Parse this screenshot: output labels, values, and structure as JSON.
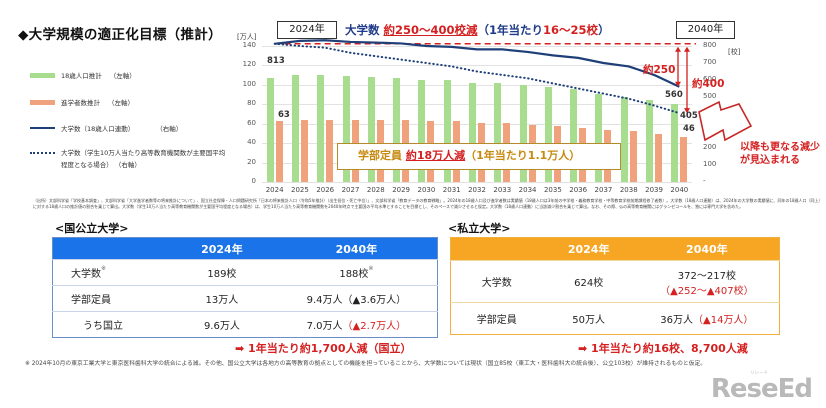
{
  "page": {
    "title": "◆大学規模の適正化目標（推計）"
  },
  "legend": {
    "items": [
      {
        "label": "18歳人口推計",
        "axis": "（左軸）"
      },
      {
        "label": "進学者数推計",
        "axis": "（左軸）"
      },
      {
        "label": "大学数（18歳人口連動）",
        "axis": "（右軸）"
      },
      {
        "label": "大学数（学生10万人当たり高等教育機関数が主要国平均程度となる場合）",
        "axis": "（右軸）"
      }
    ]
  },
  "header": {
    "year_start": "2024年",
    "year_end": "2040年",
    "headline_prefix": "大学数 ",
    "headline_red": "約250～400校減",
    "headline_paren_open": "（1年当たり",
    "headline_paren_red": "16～25校",
    "headline_paren_close": "）"
  },
  "axes": {
    "left_unit": "[万人]",
    "right_unit": "[校]",
    "left_ticks": [
      "140",
      "120",
      "100",
      "80",
      "60",
      "40",
      "20",
      "0"
    ],
    "right_ticks": [
      "800",
      "700",
      "600",
      "500",
      "400",
      "300",
      "200",
      "100",
      "-"
    ]
  },
  "annotations": {
    "label_813": "813",
    "label_63": "63",
    "label_560": "560",
    "label_405": "405",
    "label_46": "46",
    "gap_250": "約250",
    "gap_400": "約400",
    "callout_prefix": "学部定員 ",
    "callout_red": "約18万人減",
    "callout_suffix": "（1年当たり1.1万人）",
    "future_note": "以降も更なる減少が見込まれる"
  },
  "source_note": "（出所）文部科学省「学校基本調査」、文部科学省「大学進学者数等の将来推計について」、国立社会保障・人口問題研究所「日本の将来推計人口（令和5年推計）（出生低位・死亡中位）」、文部科学省「教育データの教育戦略」。2024年の18歳人口及び進学者数は実績値（18歳人口は3年前の中学校・義務教育学校・中等教育学校前期課程修了者数）。大学数（18歳人口連動）は、2024年の大学数の実績値に、同年の18歳人口（同上）に対する18歳人口の推計値の割合を乗じて算出。大学数（学生10万人当たり高等教育機関数が主要国平均程度となる場合）は、学生10万人当たり高等教育機関数を2040年時点で主要国の平均水準とすることを目標とし、そのペースで減少させると仮定。大学数（18歳人口連動）に当該減少割合を乗じて算出。なお、その際、仏の高等教育機関にはグランゼコールを、独には専門大学を含めた。",
  "public": {
    "section_title": "<国公立大学>",
    "headers": [
      "",
      "2024年",
      "2040年"
    ],
    "rows": [
      {
        "label": "大学数",
        "label_mark": "※",
        "v2024": "189校",
        "v2040": "188校",
        "v2040_mark": "※",
        "v2040_red": ""
      },
      {
        "label": "学部定員",
        "label_mark": "",
        "v2024": "13万人",
        "v2040": "9.4万人（▲3.6万人）",
        "v2040_mark": "",
        "v2040_red": ""
      },
      {
        "label": "うち国立",
        "label_mark": "",
        "v2024": "9.6万人",
        "v2040": "7.0万人",
        "v2040_mark": "",
        "v2040_red": "（▲2.7万人）"
      }
    ],
    "summary": "➡ 1年当たり約1,700人減（国立）"
  },
  "private": {
    "section_title": "<私立大学>",
    "headers": [
      "",
      "2024年",
      "2040年"
    ],
    "rows": [
      {
        "label": "大学数",
        "v2024": "624校",
        "v2040": "372～217校",
        "v2040_red": "（▲252～▲407校）"
      },
      {
        "label": "学部定員",
        "v2024": "50万人",
        "v2040": "36万人",
        "v2040_red": "（▲14万人）"
      }
    ],
    "summary": "➡ 1年当たり約16校、8,700人減"
  },
  "footnote": "※ 2024年10月の東京工業大学と東京医科歯科大学の統合による減。その他、国公立大学は各地方の高等教育の拠点としての機能を担っていることから、大学数については現状（国立85校（東工大・医科歯科大の統合後）、公立103校）が維持されるものと仮定。",
  "logo": {
    "text": "ReseEd",
    "sub": "リシード"
  },
  "chart_data": {
    "type": "bar",
    "title": "大学規模の適正化目標（推計）",
    "xlabel": "",
    "ylabel": "万人",
    "y2label": "校",
    "ylim": [
      0,
      140
    ],
    "y2lim": [
      0,
      800
    ],
    "categories": [
      "2024",
      "2025",
      "2026",
      "2027",
      "2028",
      "2029",
      "2030",
      "2031",
      "2032",
      "2033",
      "2034",
      "2035",
      "2036",
      "2037",
      "2038",
      "2039",
      "2040"
    ],
    "series": [
      {
        "name": "18歳人口推計（左軸）",
        "type": "bar",
        "axis": "left",
        "color": "#a8dc8f",
        "values": [
          107,
          110,
          110,
          109,
          108,
          107,
          105,
          105,
          102,
          102,
          100,
          98,
          96,
          91,
          88,
          84,
          80
        ]
      },
      {
        "name": "進学者数推計（左軸）",
        "type": "bar",
        "axis": "left",
        "color": "#f0a27c",
        "values": [
          63,
          64,
          64,
          64,
          64,
          64,
          63,
          63,
          61,
          61,
          59,
          58,
          56,
          54,
          53,
          49,
          46
        ]
      },
      {
        "name": "大学数（18歳人口連動）（右軸）",
        "type": "line",
        "axis": "right",
        "color": "#1f3f78",
        "values": [
          813,
          830,
          834,
          824,
          820,
          815,
          800,
          795,
          780,
          780,
          765,
          745,
          730,
          700,
          680,
          630,
          560
        ]
      },
      {
        "name": "大学数（学生10万人当たり高等教育機関数が主要国平均程度となる場合）（右軸）",
        "type": "line-dotted",
        "axis": "right",
        "color": "#1f3f78",
        "values": [
          813,
          800,
          790,
          760,
          740,
          720,
          700,
          680,
          650,
          630,
          610,
          580,
          550,
          520,
          490,
          450,
          405
        ]
      }
    ],
    "reference_line": {
      "value": 813,
      "axis": "right",
      "style": "dashed",
      "color": "#d42020"
    },
    "annotations": [
      "813",
      "63",
      "560",
      "405",
      "46",
      "約250",
      "約400",
      "学部定員 約18万人減（1年当たり1.1万人）",
      "以降も更なる減少が見込まれる"
    ],
    "legend_position": "left",
    "grid": true
  }
}
